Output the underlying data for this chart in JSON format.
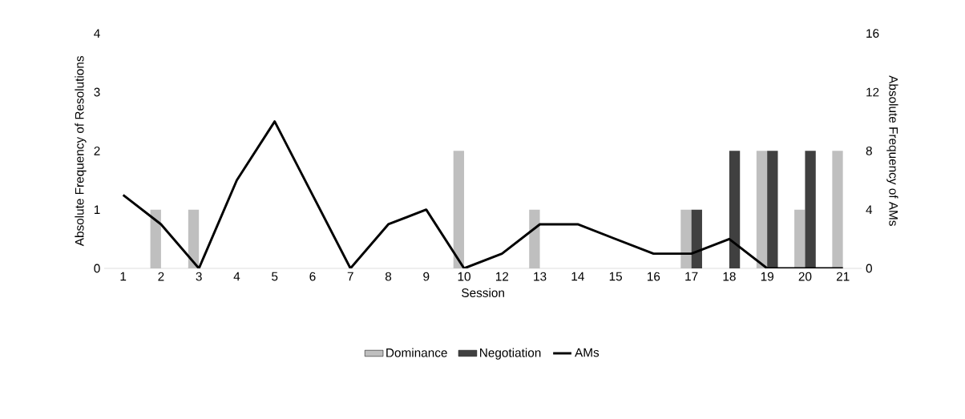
{
  "chart_data": {
    "type": "bar",
    "xlabel": "Session",
    "ylabel": "Absolute Frequency of Resolutions",
    "y2label": "Absolute Frequency of AMs",
    "categories": [
      "1",
      "2",
      "3",
      "4",
      "5",
      "6",
      "7",
      "8",
      "9",
      "10",
      "12",
      "13",
      "14",
      "15",
      "16",
      "17",
      "18",
      "19",
      "20",
      "21"
    ],
    "series": [
      {
        "name": "Dominance",
        "color": "#bfbfbf",
        "values": [
          0,
          1,
          1,
          0,
          0,
          0,
          0,
          0,
          0,
          2,
          0,
          1,
          0,
          0,
          0,
          1,
          0,
          2,
          1,
          2
        ]
      },
      {
        "name": "Negotiation",
        "color": "#404040",
        "values": [
          0,
          0,
          0,
          0,
          0,
          0,
          0,
          0,
          0,
          0,
          0,
          0,
          0,
          0,
          0,
          1,
          2,
          2,
          2,
          0
        ]
      },
      {
        "name": "AMs",
        "type": "line",
        "axis": "y2",
        "color": "#000000",
        "values": [
          5,
          3,
          0,
          6,
          10,
          5,
          0,
          3,
          4,
          0,
          1,
          3,
          3,
          2,
          1,
          1,
          2,
          0,
          0,
          0
        ]
      }
    ],
    "ylim": [
      0,
      4
    ],
    "yticks": [
      0,
      1,
      2,
      3,
      4
    ],
    "y2lim": [
      0,
      16
    ],
    "y2ticks": [
      0,
      4,
      8,
      12,
      16
    ],
    "grid": false,
    "legend": "bottom",
    "marker": "none",
    "line_style": "solid"
  }
}
